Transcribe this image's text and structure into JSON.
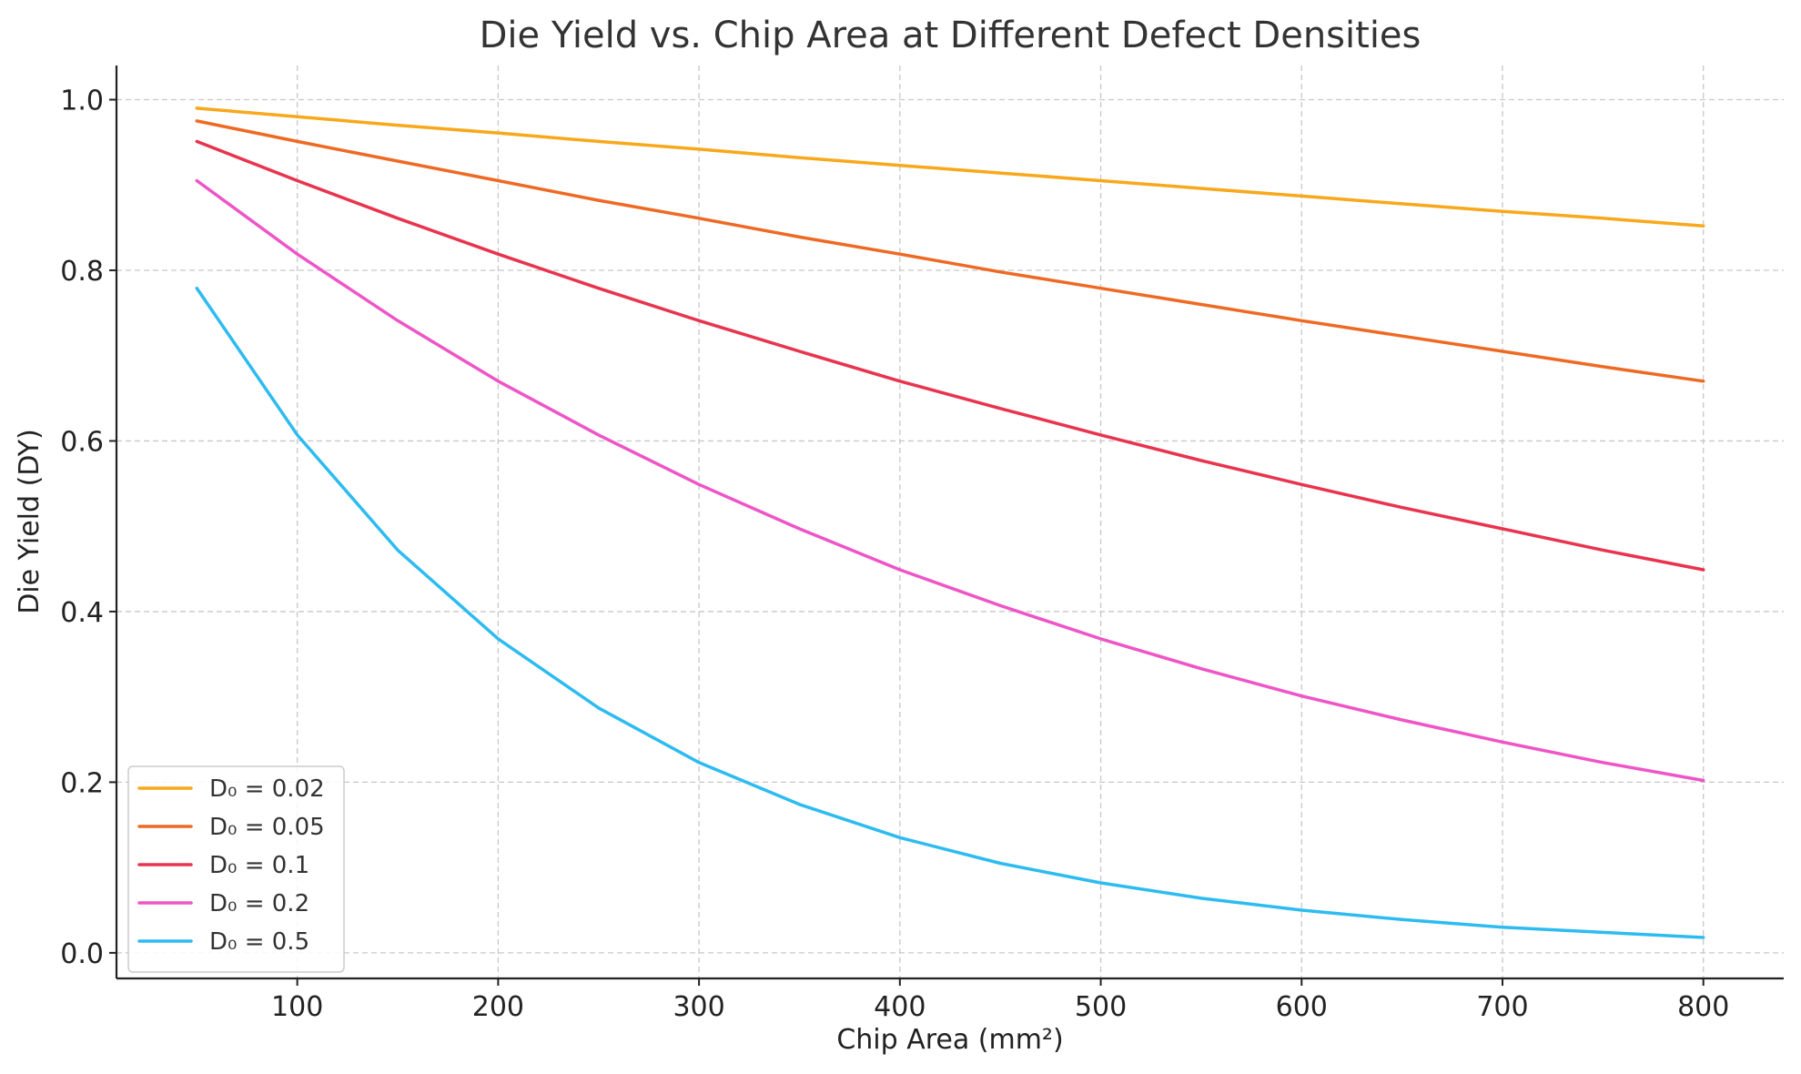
{
  "chart_data": {
    "type": "line",
    "title": "Die Yield vs. Chip Area at Different Defect Densities",
    "xlabel": "Chip Area (mm²)",
    "ylabel": "Die Yield (DY)",
    "xlim": [
      10,
      840
    ],
    "ylim": [
      -0.03,
      1.04
    ],
    "xticks": [
      {
        "value": 100,
        "label": "100"
      },
      {
        "value": 200,
        "label": "200"
      },
      {
        "value": 300,
        "label": "300"
      },
      {
        "value": 400,
        "label": "400"
      },
      {
        "value": 500,
        "label": "500"
      },
      {
        "value": 600,
        "label": "600"
      },
      {
        "value": 700,
        "label": "700"
      },
      {
        "value": 800,
        "label": "800"
      }
    ],
    "yticks": [
      {
        "value": 0.0,
        "label": "0.0"
      },
      {
        "value": 0.2,
        "label": "0.2"
      },
      {
        "value": 0.4,
        "label": "0.4"
      },
      {
        "value": 0.6,
        "label": "0.6"
      },
      {
        "value": 0.8,
        "label": "0.8"
      },
      {
        "value": 1.0,
        "label": "1.0"
      }
    ],
    "grid": true,
    "legend_position": "lower-left",
    "x": [
      50,
      100,
      150,
      200,
      250,
      300,
      350,
      400,
      450,
      500,
      550,
      600,
      650,
      700,
      750,
      800
    ],
    "series": [
      {
        "name": "D₀ = 0.02",
        "color": "#F7A81B",
        "values": [
          0.99,
          0.98,
          0.97,
          0.961,
          0.951,
          0.942,
          0.932,
          0.923,
          0.914,
          0.905,
          0.896,
          0.887,
          0.878,
          0.869,
          0.861,
          0.852
        ]
      },
      {
        "name": "D₀ = 0.05",
        "color": "#EE6A24",
        "values": [
          0.975,
          0.951,
          0.928,
          0.905,
          0.882,
          0.861,
          0.839,
          0.819,
          0.798,
          0.779,
          0.76,
          0.741,
          0.723,
          0.705,
          0.687,
          0.67
        ]
      },
      {
        "name": "D₀ = 0.1",
        "color": "#E8344E",
        "values": [
          0.951,
          0.905,
          0.861,
          0.819,
          0.779,
          0.741,
          0.705,
          0.67,
          0.638,
          0.607,
          0.577,
          0.549,
          0.522,
          0.497,
          0.472,
          0.449
        ]
      },
      {
        "name": "D₀ = 0.2",
        "color": "#EE55C6",
        "values": [
          0.905,
          0.819,
          0.741,
          0.67,
          0.607,
          0.549,
          0.497,
          0.449,
          0.407,
          0.368,
          0.333,
          0.301,
          0.273,
          0.247,
          0.223,
          0.202
        ]
      },
      {
        "name": "D₀ = 0.5",
        "color": "#2DBBF0",
        "values": [
          0.779,
          0.607,
          0.472,
          0.368,
          0.287,
          0.223,
          0.174,
          0.135,
          0.105,
          0.082,
          0.064,
          0.05,
          0.039,
          0.03,
          0.024,
          0.018
        ]
      }
    ]
  }
}
